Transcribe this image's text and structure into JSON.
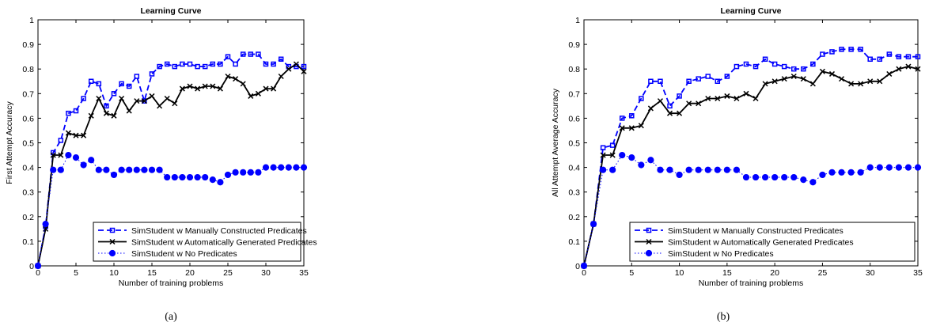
{
  "captions": [
    "(a)",
    "(b)"
  ],
  "colors": {
    "manual": "#0000ff",
    "auto": "#000000",
    "none": "#0000ff"
  },
  "chart_data": [
    {
      "type": "line",
      "title": "Learning Curve",
      "xlabel": "Number of training problems",
      "ylabel": "First Attempt Accuracy",
      "xlim": [
        0,
        35
      ],
      "ylim": [
        0,
        1
      ],
      "xticks": [
        0,
        5,
        10,
        15,
        20,
        25,
        30,
        35
      ],
      "yticks": [
        0,
        0.1,
        0.2,
        0.3,
        0.4,
        0.5,
        0.6,
        0.7,
        0.8,
        0.9,
        1
      ],
      "grid": false,
      "legend_position": "bottom-right",
      "x": [
        0,
        1,
        2,
        3,
        4,
        5,
        6,
        7,
        8,
        9,
        10,
        11,
        12,
        13,
        14,
        15,
        16,
        17,
        18,
        19,
        20,
        21,
        22,
        23,
        24,
        25,
        26,
        27,
        28,
        29,
        30,
        31,
        32,
        33,
        34,
        35
      ],
      "series": [
        {
          "name": "SimStudent w Manually Constructed Predicates",
          "style": "dashed",
          "marker": "square",
          "values": [
            0,
            0.16,
            0.46,
            0.51,
            0.62,
            0.63,
            0.68,
            0.75,
            0.74,
            0.65,
            0.7,
            0.74,
            0.73,
            0.77,
            0.67,
            0.78,
            0.81,
            0.82,
            0.81,
            0.82,
            0.82,
            0.81,
            0.81,
            0.82,
            0.82,
            0.85,
            0.82,
            0.86,
            0.86,
            0.86,
            0.82,
            0.82,
            0.84,
            0.81,
            0.81,
            0.81
          ]
        },
        {
          "name": "SimStudent w Automatically Generated Predicates",
          "style": "solid",
          "marker": "x",
          "values": [
            0,
            0.15,
            0.45,
            0.45,
            0.54,
            0.53,
            0.53,
            0.61,
            0.68,
            0.62,
            0.61,
            0.68,
            0.63,
            0.67,
            0.67,
            0.69,
            0.65,
            0.68,
            0.66,
            0.72,
            0.73,
            0.72,
            0.73,
            0.73,
            0.72,
            0.77,
            0.76,
            0.74,
            0.69,
            0.7,
            0.72,
            0.72,
            0.77,
            0.8,
            0.82,
            0.79
          ]
        },
        {
          "name": "SimStudent w No Predicates",
          "style": "dotted",
          "marker": "circle",
          "values": [
            0,
            0.17,
            0.39,
            0.39,
            0.45,
            0.44,
            0.41,
            0.43,
            0.39,
            0.39,
            0.37,
            0.39,
            0.39,
            0.39,
            0.39,
            0.39,
            0.39,
            0.36,
            0.36,
            0.36,
            0.36,
            0.36,
            0.36,
            0.35,
            0.34,
            0.37,
            0.38,
            0.38,
            0.38,
            0.38,
            0.4,
            0.4,
            0.4,
            0.4,
            0.4,
            0.4
          ]
        }
      ]
    },
    {
      "type": "line",
      "title": "Learning Curve",
      "xlabel": "Number of training problems",
      "ylabel": "All Attempt Average Accuracy",
      "xlim": [
        0,
        35
      ],
      "ylim": [
        0,
        1
      ],
      "xticks": [
        0,
        5,
        10,
        15,
        20,
        25,
        30,
        35
      ],
      "yticks": [
        0,
        0.1,
        0.2,
        0.3,
        0.4,
        0.5,
        0.6,
        0.7,
        0.8,
        0.9,
        1
      ],
      "grid": false,
      "legend_position": "bottom-right",
      "x": [
        0,
        1,
        2,
        3,
        4,
        5,
        6,
        7,
        8,
        9,
        10,
        11,
        12,
        13,
        14,
        15,
        16,
        17,
        18,
        19,
        20,
        21,
        22,
        23,
        24,
        25,
        26,
        27,
        28,
        29,
        30,
        31,
        32,
        33,
        34,
        35
      ],
      "series": [
        {
          "name": "SimStudent w Manually Constructed Predicates",
          "style": "dashed",
          "marker": "square",
          "values": [
            0,
            0.17,
            0.48,
            0.49,
            0.6,
            0.61,
            0.68,
            0.75,
            0.75,
            0.65,
            0.69,
            0.75,
            0.76,
            0.77,
            0.75,
            0.77,
            0.81,
            0.82,
            0.81,
            0.84,
            0.82,
            0.81,
            0.8,
            0.8,
            0.82,
            0.86,
            0.87,
            0.88,
            0.88,
            0.88,
            0.84,
            0.84,
            0.86,
            0.85,
            0.85,
            0.85
          ]
        },
        {
          "name": "SimStudent w Automatically Generated Predicates",
          "style": "solid",
          "marker": "x",
          "values": [
            0,
            0.17,
            0.45,
            0.45,
            0.56,
            0.56,
            0.57,
            0.64,
            0.67,
            0.62,
            0.62,
            0.66,
            0.66,
            0.68,
            0.68,
            0.69,
            0.68,
            0.7,
            0.68,
            0.74,
            0.75,
            0.76,
            0.77,
            0.76,
            0.74,
            0.79,
            0.78,
            0.76,
            0.74,
            0.74,
            0.75,
            0.75,
            0.78,
            0.8,
            0.81,
            0.8
          ]
        },
        {
          "name": "SimStudent w No Predicates",
          "style": "dotted",
          "marker": "circle",
          "values": [
            0,
            0.17,
            0.39,
            0.39,
            0.45,
            0.44,
            0.41,
            0.43,
            0.39,
            0.39,
            0.37,
            0.39,
            0.39,
            0.39,
            0.39,
            0.39,
            0.39,
            0.36,
            0.36,
            0.36,
            0.36,
            0.36,
            0.36,
            0.35,
            0.34,
            0.37,
            0.38,
            0.38,
            0.38,
            0.38,
            0.4,
            0.4,
            0.4,
            0.4,
            0.4,
            0.4
          ]
        }
      ]
    }
  ]
}
